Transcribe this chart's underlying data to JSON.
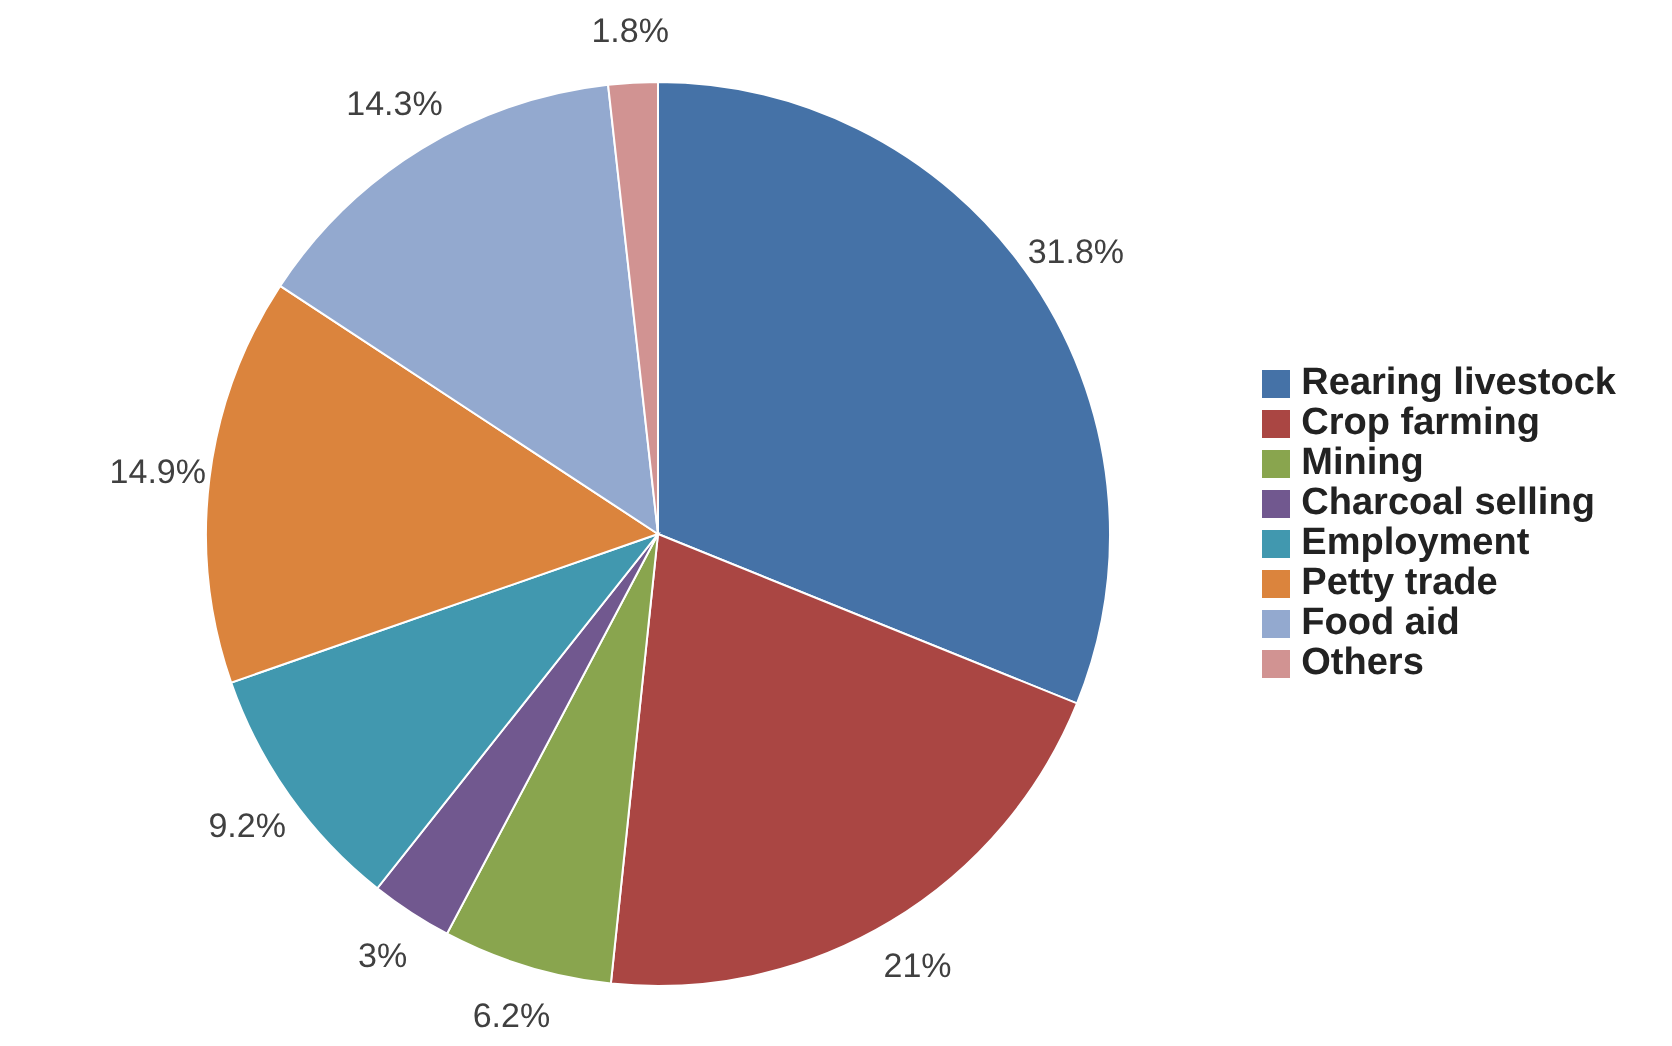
{
  "chart_data": {
    "type": "pie",
    "categories": [
      "Rearing livestock",
      "Crop farming",
      "Mining",
      "Charcoal selling",
      "Employment",
      "Petty trade",
      "Food aid",
      "Others"
    ],
    "values": [
      31.8,
      21,
      6.2,
      3,
      9.2,
      14.9,
      14.3,
      1.8
    ],
    "colors": [
      "#4572a7",
      "#aa4643",
      "#89a54e",
      "#71588f",
      "#4198af",
      "#db843d",
      "#93a9cf",
      "#d19392"
    ],
    "value_labels": [
      "31.8%",
      "21%",
      "6.2%",
      "3%",
      "9.2%",
      "14.9%",
      "14.3%",
      "1.8%"
    ],
    "legend": "right"
  }
}
